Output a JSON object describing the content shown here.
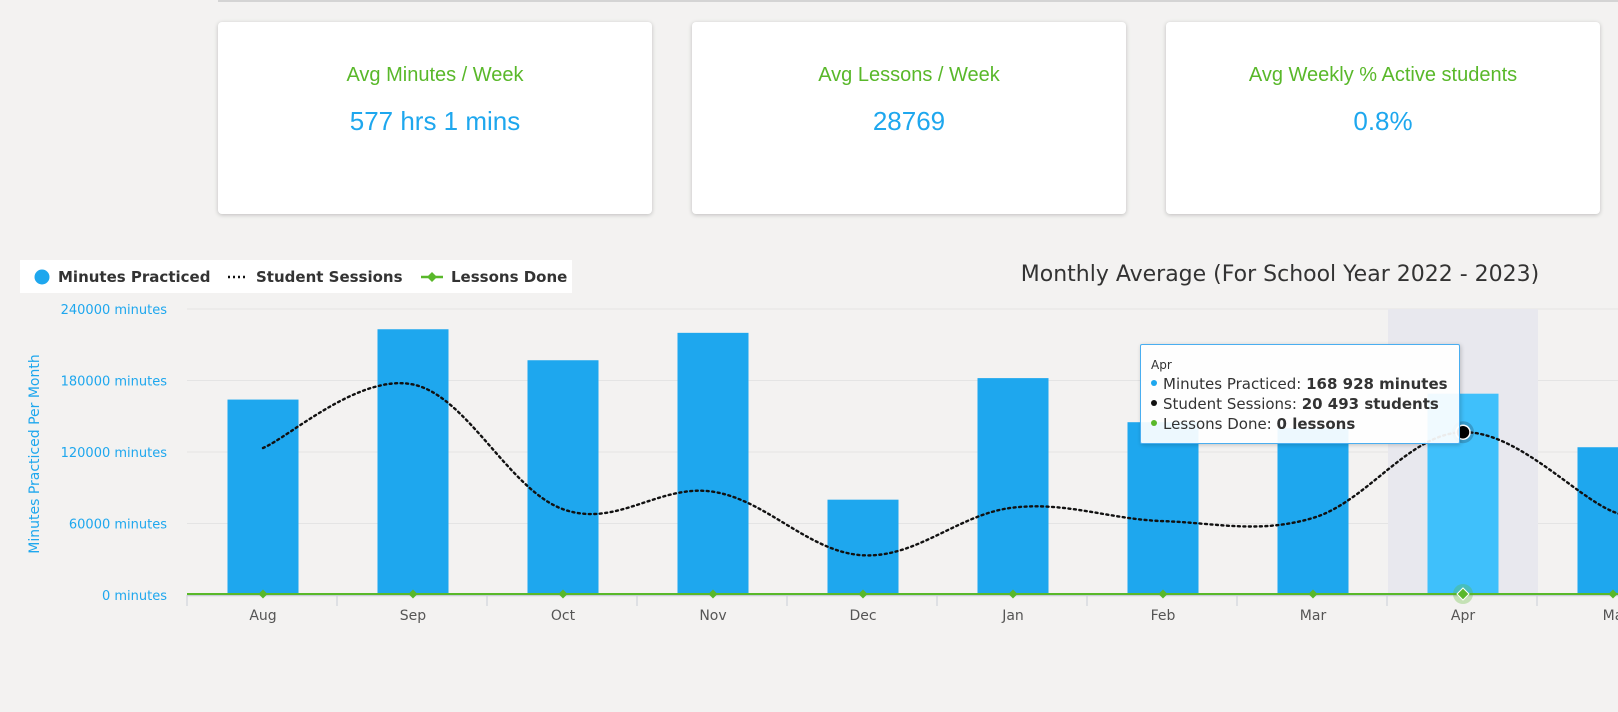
{
  "kpis": [
    {
      "label": "Avg Minutes / Week",
      "value": "577 hrs 1 mins"
    },
    {
      "label": "Avg Lessons / Week",
      "value": "28769"
    },
    {
      "label": "Avg Weekly % Active students",
      "value": "0.8%"
    }
  ],
  "legend": {
    "minutes": "Minutes Practiced",
    "sessions": "Student Sessions",
    "lessons": "Lessons Done"
  },
  "tooltip": {
    "month": "Apr",
    "minutes_label": "Minutes Practiced:",
    "minutes_value": "168 928 minutes",
    "sessions_label": "Student Sessions:",
    "sessions_value": "20 493 students",
    "lessons_label": "Lessons Done:",
    "lessons_value": "0 lessons"
  },
  "colors": {
    "bar": "#1ea7ee",
    "bar_highlight": "#3fc0fb",
    "highlight_band": "#e8e8ee",
    "sessions_line": "#111111",
    "lessons_line": "#59b82a",
    "label_green": "#59b82a",
    "value_blue": "#1ea7ee"
  },
  "chart_data": {
    "type": "bar",
    "title": "Monthly Average (For School Year 2022 - 2023)",
    "ylabel": "Minutes Practiced Per Month",
    "xlabel": "",
    "ylim": [
      0,
      240000
    ],
    "y_ticks": [
      0,
      60000,
      120000,
      180000,
      240000
    ],
    "y_tick_labels": [
      "0 minutes",
      "60000 minutes",
      "120000 minutes",
      "180000 minutes",
      "240000 minutes"
    ],
    "categories": [
      "Aug",
      "Sep",
      "Oct",
      "Nov",
      "Dec",
      "Jan",
      "Feb",
      "Mar",
      "Apr",
      "Ma"
    ],
    "highlighted_category": "Apr",
    "legend_position": "top-left",
    "grid": true,
    "series": [
      {
        "name": "Minutes Practiced",
        "type": "bar",
        "values": [
          164000,
          223000,
          197000,
          220000,
          80000,
          182000,
          145000,
          140000,
          168928,
          124000
        ]
      },
      {
        "name": "Student Sessions",
        "type": "line",
        "style": "dotted",
        "values": [
          18500,
          26500,
          10800,
          13000,
          5000,
          11000,
          9300,
          9700,
          20493,
          10500
        ]
      },
      {
        "name": "Lessons Done",
        "type": "line",
        "values": [
          0,
          0,
          0,
          0,
          0,
          0,
          0,
          0,
          0,
          0
        ]
      }
    ]
  }
}
